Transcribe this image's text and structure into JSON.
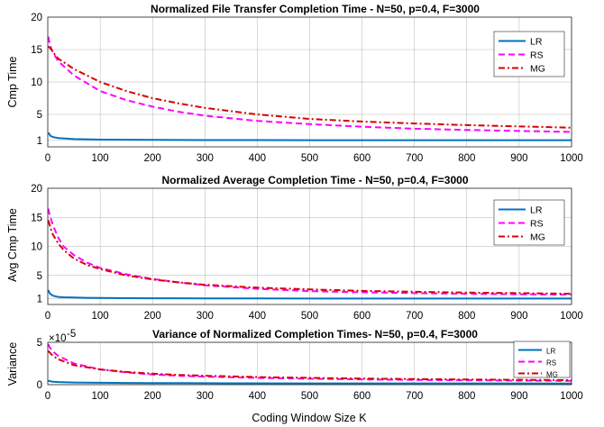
{
  "xlabel": "Coding Window Size K",
  "colors": {
    "LR": "#0072BD",
    "RS": "#FF00FF",
    "MG": "#D90000",
    "grid": "#262626"
  },
  "chart_data": [
    {
      "type": "line",
      "title": "Normalized File Transfer Completion Time - N=50, p=0.4, F=3000",
      "xlabel": "",
      "ylabel": "Cmp Time",
      "xlim": [
        0,
        1000
      ],
      "ylim": [
        0,
        20
      ],
      "xticks": [
        "0",
        "100",
        "200",
        "300",
        "400",
        "500",
        "600",
        "700",
        "800",
        "900",
        "1000"
      ],
      "yticks": [
        "1",
        "5",
        "10",
        "15",
        "20"
      ],
      "grid": true,
      "legend_position": "top-right",
      "x": [
        1,
        2,
        5,
        10,
        20,
        50,
        100,
        150,
        200,
        250,
        300,
        400,
        500,
        600,
        700,
        800,
        900,
        1000
      ],
      "series": [
        {
          "name": "LR",
          "style": "solid",
          "values": [
            2.0,
            2.1,
            1.7,
            1.5,
            1.35,
            1.2,
            1.12,
            1.09,
            1.07,
            1.06,
            1.05,
            1.04,
            1.03,
            1.03,
            1.02,
            1.02,
            1.02,
            1.02
          ]
        },
        {
          "name": "RS",
          "style": "dashed",
          "values": [
            17.0,
            16.5,
            15.5,
            14.5,
            13.2,
            11.0,
            8.6,
            7.2,
            6.2,
            5.4,
            4.8,
            4.0,
            3.5,
            3.1,
            2.8,
            2.6,
            2.45,
            2.3
          ]
        },
        {
          "name": "MG",
          "style": "dashdot",
          "values": [
            15.5,
            15.4,
            15.2,
            14.6,
            13.6,
            12.0,
            10.0,
            8.6,
            7.5,
            6.7,
            6.0,
            5.0,
            4.3,
            3.9,
            3.6,
            3.35,
            3.15,
            2.95
          ]
        }
      ]
    },
    {
      "type": "line",
      "title": "Normalized Average Completion Time - N=50, p=0.4, F=3000",
      "xlabel": "",
      "ylabel": "Avg Cmp Time",
      "xlim": [
        0,
        1000
      ],
      "ylim": [
        0,
        20
      ],
      "xticks": [
        "0",
        "100",
        "200",
        "300",
        "400",
        "500",
        "600",
        "700",
        "800",
        "900",
        "1000"
      ],
      "yticks": [
        "1",
        "5",
        "10",
        "15",
        "20"
      ],
      "grid": true,
      "legend_position": "top-right",
      "x": [
        1,
        2,
        5,
        10,
        20,
        30,
        50,
        75,
        100,
        150,
        200,
        250,
        300,
        400,
        500,
        600,
        700,
        800,
        900,
        1000
      ],
      "series": [
        {
          "name": "LR",
          "style": "solid",
          "values": [
            2.5,
            2.2,
            1.8,
            1.5,
            1.3,
            1.25,
            1.2,
            1.15,
            1.12,
            1.09,
            1.07,
            1.06,
            1.05,
            1.04,
            1.03,
            1.03,
            1.02,
            1.02,
            1.02,
            1.02
          ]
        },
        {
          "name": "RS",
          "style": "dashed",
          "values": [
            16.5,
            16.0,
            15.0,
            13.6,
            11.5,
            10.0,
            8.5,
            7.2,
            6.3,
            5.2,
            4.4,
            3.8,
            3.3,
            2.7,
            2.3,
            2.1,
            1.95,
            1.85,
            1.75,
            1.7
          ]
        },
        {
          "name": "MG",
          "style": "dashdot",
          "values": [
            14.5,
            14.2,
            13.2,
            12.0,
            10.5,
            9.4,
            7.9,
            6.8,
            6.1,
            5.0,
            4.3,
            3.8,
            3.4,
            2.9,
            2.6,
            2.35,
            2.2,
            2.05,
            1.95,
            1.85
          ]
        }
      ]
    },
    {
      "type": "line",
      "title": "Variance of Normalized Completion Times- N=50, p=0.4, F=3000",
      "xlabel": "Coding Window Size K",
      "ylabel": "Variance",
      "y_exponent": "×10",
      "y_exponent_power": "-5",
      "xlim": [
        0,
        1000
      ],
      "ylim": [
        0,
        5
      ],
      "xticks": [
        "0",
        "100",
        "200",
        "300",
        "400",
        "500",
        "600",
        "700",
        "800",
        "900",
        "1000"
      ],
      "yticks": [
        "0",
        "5"
      ],
      "grid": true,
      "legend_position": "top-right",
      "x": [
        1,
        2,
        5,
        10,
        20,
        50,
        100,
        150,
        200,
        250,
        300,
        400,
        500,
        600,
        700,
        800,
        900,
        1000
      ],
      "series": [
        {
          "name": "LR",
          "style": "solid",
          "values": [
            0.5,
            0.45,
            0.4,
            0.35,
            0.3,
            0.25,
            0.22,
            0.2,
            0.19,
            0.18,
            0.17,
            0.16,
            0.15,
            0.15,
            0.14,
            0.14,
            0.14,
            0.13
          ]
        },
        {
          "name": "RS",
          "style": "dashed",
          "values": [
            4.8,
            4.6,
            4.3,
            3.9,
            3.4,
            2.5,
            1.8,
            1.45,
            1.2,
            1.05,
            0.95,
            0.8,
            0.7,
            0.62,
            0.56,
            0.52,
            0.48,
            0.45
          ]
        },
        {
          "name": "MG",
          "style": "dashdot",
          "values": [
            4.0,
            3.9,
            3.7,
            3.4,
            3.0,
            2.3,
            1.8,
            1.5,
            1.3,
            1.15,
            1.05,
            0.9,
            0.8,
            0.72,
            0.66,
            0.61,
            0.57,
            0.54
          ]
        }
      ]
    }
  ]
}
